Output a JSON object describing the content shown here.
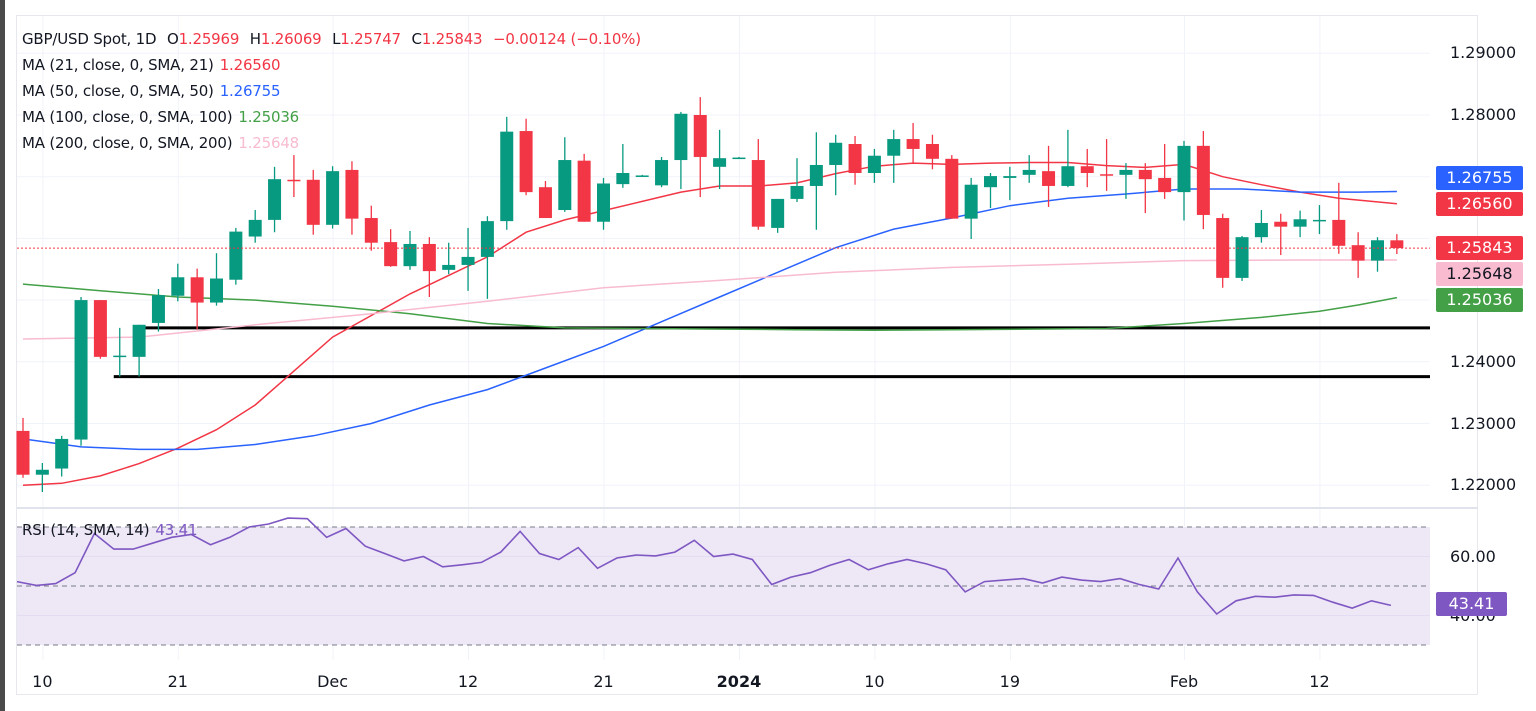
{
  "header": {
    "symbol": "GBP/USD Spot, 1D",
    "open_label": "O",
    "open": "1.25969",
    "high_label": "H",
    "high": "1.26069",
    "low_label": "L",
    "low": "1.25747",
    "close_label": "C",
    "close": "1.25843",
    "change": "−0.00124 (−0.10%)"
  },
  "indicators": [
    {
      "label": "MA (21, close, 0, SMA, 21)",
      "value": "1.26560",
      "color": "#f23645"
    },
    {
      "label": "MA (50, close, 0, SMA, 50)",
      "value": "1.26755",
      "color": "#2962ff"
    },
    {
      "label": "MA (100, close, 0, SMA, 100)",
      "value": "1.25036",
      "color": "#43a047"
    },
    {
      "label": "MA (200, close, 0, SMA, 200)",
      "value": "1.25648",
      "color": "#f8bbd0"
    }
  ],
  "rsi": {
    "label": "RSI (14, SMA, 14)",
    "value": "43.41",
    "color": "#7e57c2"
  },
  "price_tags": [
    {
      "value": "1.26755",
      "bg": "#2962ff",
      "fg": "#ffffff"
    },
    {
      "value": "1.26560",
      "bg": "#f23645",
      "fg": "#ffffff"
    },
    {
      "value": "1.25843",
      "bg": "#f23645",
      "fg": "#ffffff"
    },
    {
      "value": "1.25648",
      "bg": "#f8bbd0",
      "fg": "#131722"
    },
    {
      "value": "1.25036",
      "bg": "#43a047",
      "fg": "#ffffff"
    }
  ],
  "colors": {
    "up": "#089981",
    "down": "#f23645",
    "rsi_band": "#ede7f6"
  },
  "chart_data": [
    {
      "type": "candlestick",
      "title": "GBP/USD Spot, 1D",
      "ylim": [
        1.2175,
        1.2925
      ],
      "yticks": [
        "1.29000",
        "1.28000",
        "1.24000",
        "1.23000",
        "1.22000"
      ],
      "ytick_values": [
        1.29,
        1.28,
        1.24,
        1.23,
        1.22
      ],
      "xticks": [
        {
          "label": "10",
          "index": 1,
          "bold": false
        },
        {
          "label": "21",
          "index": 8,
          "bold": false
        },
        {
          "label": "Dec",
          "index": 16,
          "bold": false
        },
        {
          "label": "12",
          "index": 23,
          "bold": false
        },
        {
          "label": "21",
          "index": 30,
          "bold": false
        },
        {
          "label": "2024",
          "index": 37,
          "bold": true
        },
        {
          "label": "10",
          "index": 44,
          "bold": false
        },
        {
          "label": "19",
          "index": 51,
          "bold": false
        },
        {
          "label": "Feb",
          "index": 60,
          "bold": false
        },
        {
          "label": "12",
          "index": 67,
          "bold": false
        }
      ],
      "grid": true,
      "last_price": 1.25843,
      "horizontal_lines": [
        {
          "price": 1.2455,
          "from_index": 6,
          "color": "#000000"
        },
        {
          "price": 1.2376,
          "from_index": 5,
          "color": "#000000"
        }
      ],
      "candles": [
        {
          "o": 1.2288,
          "h": 1.2309,
          "l": 1.2212,
          "c": 1.2217
        },
        {
          "o": 1.2217,
          "h": 1.2236,
          "l": 1.2189,
          "c": 1.2225
        },
        {
          "o": 1.2227,
          "h": 1.228,
          "l": 1.2214,
          "c": 1.2275
        },
        {
          "o": 1.2274,
          "h": 1.2505,
          "l": 1.2264,
          "c": 1.25
        },
        {
          "o": 1.25,
          "h": 1.25,
          "l": 1.2405,
          "c": 1.2408
        },
        {
          "o": 1.241,
          "h": 1.2455,
          "l": 1.2376,
          "c": 1.241
        },
        {
          "o": 1.2408,
          "h": 1.246,
          "l": 1.2376,
          "c": 1.246
        },
        {
          "o": 1.2463,
          "h": 1.2518,
          "l": 1.2449,
          "c": 1.2508
        },
        {
          "o": 1.2507,
          "h": 1.2559,
          "l": 1.2498,
          "c": 1.2537
        },
        {
          "o": 1.2537,
          "h": 1.2551,
          "l": 1.2452,
          "c": 1.2496
        },
        {
          "o": 1.2496,
          "h": 1.2576,
          "l": 1.2491,
          "c": 1.2535
        },
        {
          "o": 1.2533,
          "h": 1.2617,
          "l": 1.2525,
          "c": 1.2611
        },
        {
          "o": 1.2603,
          "h": 1.2646,
          "l": 1.2593,
          "c": 1.263
        },
        {
          "o": 1.263,
          "h": 1.2716,
          "l": 1.261,
          "c": 1.2696
        },
        {
          "o": 1.2695,
          "h": 1.2735,
          "l": 1.2667,
          "c": 1.2694
        },
        {
          "o": 1.2695,
          "h": 1.2711,
          "l": 1.2606,
          "c": 1.2622
        },
        {
          "o": 1.2622,
          "h": 1.2717,
          "l": 1.2616,
          "c": 1.2709
        },
        {
          "o": 1.2711,
          "h": 1.2725,
          "l": 1.2606,
          "c": 1.2632
        },
        {
          "o": 1.2633,
          "h": 1.2653,
          "l": 1.258,
          "c": 1.2593
        },
        {
          "o": 1.2594,
          "h": 1.2615,
          "l": 1.2554,
          "c": 1.2555
        },
        {
          "o": 1.2555,
          "h": 1.2612,
          "l": 1.2549,
          "c": 1.2591
        },
        {
          "o": 1.2591,
          "h": 1.2602,
          "l": 1.2505,
          "c": 1.2547
        },
        {
          "o": 1.2549,
          "h": 1.2593,
          "l": 1.2542,
          "c": 1.2557
        },
        {
          "o": 1.2557,
          "h": 1.2617,
          "l": 1.2515,
          "c": 1.257
        },
        {
          "o": 1.257,
          "h": 1.2636,
          "l": 1.2502,
          "c": 1.2628
        },
        {
          "o": 1.2628,
          "h": 1.2797,
          "l": 1.2614,
          "c": 1.2773
        },
        {
          "o": 1.2774,
          "h": 1.2794,
          "l": 1.267,
          "c": 1.2675
        },
        {
          "o": 1.2683,
          "h": 1.2693,
          "l": 1.2633,
          "c": 1.2633
        },
        {
          "o": 1.2646,
          "h": 1.2764,
          "l": 1.2643,
          "c": 1.2727
        },
        {
          "o": 1.2726,
          "h": 1.2737,
          "l": 1.2627,
          "c": 1.2627
        },
        {
          "o": 1.2627,
          "h": 1.2698,
          "l": 1.2614,
          "c": 1.2689
        },
        {
          "o": 1.2688,
          "h": 1.2753,
          "l": 1.2682,
          "c": 1.2706
        },
        {
          "o": 1.2701,
          "h": 1.2703,
          "l": 1.27,
          "c": 1.2702
        },
        {
          "o": 1.2686,
          "h": 1.2732,
          "l": 1.2683,
          "c": 1.2727
        },
        {
          "o": 1.2727,
          "h": 1.2805,
          "l": 1.268,
          "c": 1.2802
        },
        {
          "o": 1.28,
          "h": 1.2829,
          "l": 1.2667,
          "c": 1.2732
        },
        {
          "o": 1.2716,
          "h": 1.2776,
          "l": 1.268,
          "c": 1.273
        },
        {
          "o": 1.273,
          "h": 1.2732,
          "l": 1.2729,
          "c": 1.2731
        },
        {
          "o": 1.2727,
          "h": 1.2761,
          "l": 1.2614,
          "c": 1.2619
        },
        {
          "o": 1.2617,
          "h": 1.2664,
          "l": 1.2609,
          "c": 1.2664
        },
        {
          "o": 1.2664,
          "h": 1.273,
          "l": 1.2659,
          "c": 1.2685
        },
        {
          "o": 1.2685,
          "h": 1.2772,
          "l": 1.2614,
          "c": 1.2719
        },
        {
          "o": 1.2719,
          "h": 1.2768,
          "l": 1.267,
          "c": 1.2755
        },
        {
          "o": 1.2753,
          "h": 1.2766,
          "l": 1.2687,
          "c": 1.2706
        },
        {
          "o": 1.2706,
          "h": 1.2745,
          "l": 1.269,
          "c": 1.2734
        },
        {
          "o": 1.2734,
          "h": 1.2776,
          "l": 1.269,
          "c": 1.2761
        },
        {
          "o": 1.2761,
          "h": 1.2787,
          "l": 1.2722,
          "c": 1.2745
        },
        {
          "o": 1.2753,
          "h": 1.2768,
          "l": 1.2712,
          "c": 1.2729
        },
        {
          "o": 1.2729,
          "h": 1.2735,
          "l": 1.2632,
          "c": 1.2632
        },
        {
          "o": 1.2632,
          "h": 1.2698,
          "l": 1.2599,
          "c": 1.2687
        },
        {
          "o": 1.2683,
          "h": 1.2706,
          "l": 1.2649,
          "c": 1.2701
        },
        {
          "o": 1.2698,
          "h": 1.2716,
          "l": 1.2662,
          "c": 1.2701
        },
        {
          "o": 1.2703,
          "h": 1.2735,
          "l": 1.269,
          "c": 1.2711
        },
        {
          "o": 1.2709,
          "h": 1.275,
          "l": 1.2651,
          "c": 1.2685
        },
        {
          "o": 1.2685,
          "h": 1.2776,
          "l": 1.2683,
          "c": 1.2717
        },
        {
          "o": 1.2717,
          "h": 1.2745,
          "l": 1.2683,
          "c": 1.2706
        },
        {
          "o": 1.2704,
          "h": 1.2761,
          "l": 1.2677,
          "c": 1.2703
        },
        {
          "o": 1.2703,
          "h": 1.2722,
          "l": 1.2664,
          "c": 1.2711
        },
        {
          "o": 1.2711,
          "h": 1.2722,
          "l": 1.2641,
          "c": 1.2696
        },
        {
          "o": 1.2698,
          "h": 1.2753,
          "l": 1.2664,
          "c": 1.2675
        },
        {
          "o": 1.2675,
          "h": 1.2758,
          "l": 1.2629,
          "c": 1.275
        },
        {
          "o": 1.275,
          "h": 1.2774,
          "l": 1.2615,
          "c": 1.2638
        },
        {
          "o": 1.2633,
          "h": 1.264,
          "l": 1.252,
          "c": 1.2536
        },
        {
          "o": 1.2536,
          "h": 1.2604,
          "l": 1.2531,
          "c": 1.2602
        },
        {
          "o": 1.2602,
          "h": 1.2646,
          "l": 1.2593,
          "c": 1.2625
        },
        {
          "o": 1.2627,
          "h": 1.264,
          "l": 1.2573,
          "c": 1.2619
        },
        {
          "o": 1.2619,
          "h": 1.2645,
          "l": 1.2602,
          "c": 1.2631
        },
        {
          "o": 1.2629,
          "h": 1.2654,
          "l": 1.2607,
          "c": 1.263
        },
        {
          "o": 1.263,
          "h": 1.269,
          "l": 1.2575,
          "c": 1.2588
        },
        {
          "o": 1.2589,
          "h": 1.261,
          "l": 1.2536,
          "c": 1.2564
        },
        {
          "o": 1.2564,
          "h": 1.2602,
          "l": 1.2546,
          "c": 1.2597
        },
        {
          "o": 1.25969,
          "h": 1.26069,
          "l": 1.25747,
          "c": 1.25843
        }
      ],
      "moving_averages": [
        {
          "name": "MA 21",
          "color": "#f23645",
          "points": [
            [
              0,
              1.22
            ],
            [
              2,
              1.2203
            ],
            [
              4,
              1.2215
            ],
            [
              6,
              1.2235
            ],
            [
              8,
              1.226
            ],
            [
              10,
              1.229
            ],
            [
              12,
              1.233
            ],
            [
              14,
              1.2385
            ],
            [
              16,
              1.244
            ],
            [
              18,
              1.2475
            ],
            [
              20,
              1.251
            ],
            [
              22,
              1.254
            ],
            [
              24,
              1.257
            ],
            [
              26,
              1.261
            ],
            [
              28,
              1.263
            ],
            [
              30,
              1.2645
            ],
            [
              32,
              1.266
            ],
            [
              34,
              1.2675
            ],
            [
              36,
              1.2685
            ],
            [
              38,
              1.2685
            ],
            [
              40,
              1.269
            ],
            [
              42,
              1.2705
            ],
            [
              44,
              1.2717
            ],
            [
              46,
              1.2722
            ],
            [
              48,
              1.272
            ],
            [
              50,
              1.2722
            ],
            [
              52,
              1.2723
            ],
            [
              54,
              1.2723
            ],
            [
              56,
              1.2718
            ],
            [
              58,
              1.2715
            ],
            [
              60,
              1.272
            ],
            [
              62,
              1.27
            ],
            [
              64,
              1.2687
            ],
            [
              66,
              1.2675
            ],
            [
              68,
              1.2665
            ],
            [
              71,
              1.2656
            ]
          ]
        },
        {
          "name": "MA 50",
          "color": "#2962ff",
          "points": [
            [
              0,
              1.2275
            ],
            [
              3,
              1.2262
            ],
            [
              6,
              1.2258
            ],
            [
              9,
              1.2258
            ],
            [
              12,
              1.2266
            ],
            [
              15,
              1.228
            ],
            [
              18,
              1.23
            ],
            [
              21,
              1.233
            ],
            [
              24,
              1.2355
            ],
            [
              27,
              1.239
            ],
            [
              30,
              1.2425
            ],
            [
              33,
              1.2465
            ],
            [
              36,
              1.2505
            ],
            [
              39,
              1.2545
            ],
            [
              42,
              1.2585
            ],
            [
              45,
              1.2615
            ],
            [
              48,
              1.2633
            ],
            [
              51,
              1.2653
            ],
            [
              54,
              1.2665
            ],
            [
              57,
              1.2672
            ],
            [
              60,
              1.268
            ],
            [
              63,
              1.268
            ],
            [
              66,
              1.2675
            ],
            [
              69,
              1.2675
            ],
            [
              71,
              1.2676
            ]
          ]
        },
        {
          "name": "MA 100",
          "color": "#43a047",
          "points": [
            [
              0,
              1.2526
            ],
            [
              4,
              1.2515
            ],
            [
              8,
              1.2505
            ],
            [
              12,
              1.25
            ],
            [
              16,
              1.249
            ],
            [
              20,
              1.2478
            ],
            [
              24,
              1.2462
            ],
            [
              28,
              1.2455
            ],
            [
              32,
              1.2454
            ],
            [
              36,
              1.2453
            ],
            [
              40,
              1.2452
            ],
            [
              44,
              1.2451
            ],
            [
              48,
              1.2452
            ],
            [
              52,
              1.2453
            ],
            [
              56,
              1.2454
            ],
            [
              60,
              1.2462
            ],
            [
              64,
              1.2472
            ],
            [
              67,
              1.2482
            ],
            [
              69,
              1.2492
            ],
            [
              71,
              1.2504
            ]
          ]
        },
        {
          "name": "MA 200",
          "color": "#f8bbd0",
          "points": [
            [
              0,
              1.2437
            ],
            [
              6,
              1.244
            ],
            [
              12,
              1.246
            ],
            [
              18,
              1.2478
            ],
            [
              24,
              1.2498
            ],
            [
              30,
              1.252
            ],
            [
              36,
              1.2532
            ],
            [
              42,
              1.2545
            ],
            [
              48,
              1.2553
            ],
            [
              54,
              1.2558
            ],
            [
              60,
              1.2564
            ],
            [
              66,
              1.2565
            ],
            [
              71,
              1.2565
            ]
          ]
        }
      ]
    },
    {
      "type": "line",
      "title": "RSI (14, SMA, 14)",
      "ylim": [
        24,
        78
      ],
      "yticks": [
        "60.00",
        "40.00"
      ],
      "ytick_values": [
        60,
        40
      ],
      "bands": [
        70,
        50,
        30
      ],
      "last_value": 43.41,
      "series": [
        {
          "name": "RSI",
          "values": [
            51.5,
            50.2,
            50.8,
            54.5,
            67.8,
            62.5,
            62.5,
            64.5,
            66.5,
            67.5,
            64.0,
            66.5,
            70.0,
            71.0,
            73.0,
            72.8,
            66.5,
            69.5,
            63.5,
            61.0,
            58.5,
            60.0,
            56.5,
            57.2,
            58.0,
            61.5,
            68.5,
            61.0,
            59.0,
            63.0,
            56.0,
            59.5,
            60.5,
            60.2,
            61.5,
            65.5,
            60.0,
            60.8,
            59.0,
            50.5,
            53.0,
            54.5,
            57.0,
            59.0,
            55.5,
            57.5,
            59.0,
            57.5,
            55.5,
            48.0,
            51.5,
            52.0,
            52.5,
            51.0,
            53.0,
            52.0,
            51.5,
            52.5,
            50.5,
            49.0,
            59.5,
            48.0,
            40.5,
            45.0,
            46.5,
            46.2,
            47.0,
            46.8,
            44.5,
            42.5,
            45.0,
            43.41
          ]
        }
      ]
    }
  ]
}
